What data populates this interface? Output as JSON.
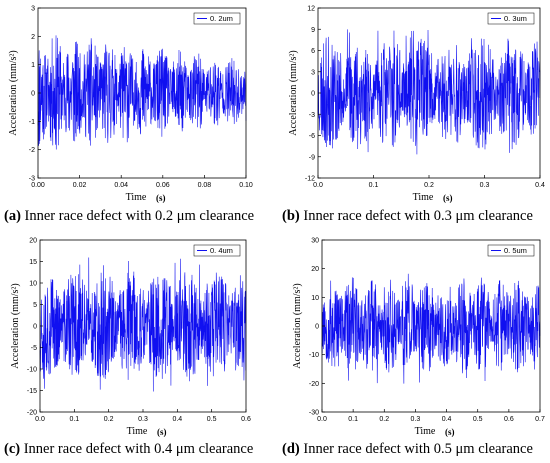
{
  "colors": {
    "signal": "#1010f0",
    "axis": "#000000"
  },
  "chart_data": [
    {
      "id": "a",
      "type": "line",
      "caption_tag": "(a)",
      "caption_text": " Inner race defect with 0.2 μm clearance",
      "xlabel": "Time",
      "xlabel_unit": "(s)",
      "ylabel": "Acceleration  (mm/s²)",
      "xlim": [
        0,
        0.1
      ],
      "ylim": [
        -3,
        3
      ],
      "xticks": [
        "0.00",
        "0.02",
        "0.04",
        "0.06",
        "0.08",
        "0.10"
      ],
      "yticks": [
        "-3",
        "-2",
        "-1",
        "0",
        "1",
        "2",
        "3"
      ],
      "series": [
        {
          "name": "0. 2um",
          "envelope": {
            "amplitude_start": 2.2,
            "amplitude_end": 1.2,
            "x_range": [
              0,
              0.1
            ]
          }
        }
      ],
      "legend_position": "top-right"
    },
    {
      "id": "b",
      "type": "line",
      "caption_tag": "(b)",
      "caption_text": " Inner race defect with 0.3 μm clearance",
      "xlabel": "Time",
      "xlabel_unit": "(s)",
      "ylabel": "Acceleration  (mm/s²)",
      "xlim": [
        0,
        0.4
      ],
      "ylim": [
        -12,
        12
      ],
      "xticks": [
        "0.0",
        "0.1",
        "0.2",
        "0.3",
        "0.4"
      ],
      "yticks": [
        "-12",
        "-9",
        "-6",
        "-3",
        "0",
        "3",
        "6",
        "9",
        "12"
      ],
      "series": [
        {
          "name": "0. 3um",
          "envelope": {
            "amplitude_start": 8,
            "amplitude_end": 8,
            "peak": 9,
            "x_range": [
              0,
              0.4
            ]
          }
        }
      ],
      "legend_position": "top-right"
    },
    {
      "id": "c",
      "type": "line",
      "caption_tag": "(c)",
      "caption_text": " Inner race defect with 0.4 μm clearance",
      "xlabel": "Time",
      "xlabel_unit": "(s)",
      "ylabel": "Acceleration  (mm/s²)",
      "xlim": [
        0,
        0.6
      ],
      "ylim": [
        -20,
        20
      ],
      "xticks": [
        "0.0",
        "0.1",
        "0.2",
        "0.3",
        "0.4",
        "0.5",
        "0.6"
      ],
      "yticks": [
        "-20",
        "-15",
        "-10",
        "-5",
        "0",
        "5",
        "10",
        "15",
        "20"
      ],
      "series": [
        {
          "name": "0. 4um",
          "envelope": {
            "amplitude_start": 13,
            "amplitude_end": 13,
            "peak": 16,
            "x_range": [
              0,
              0.6
            ]
          }
        }
      ],
      "legend_position": "top-right"
    },
    {
      "id": "d",
      "type": "line",
      "caption_tag": "(d)",
      "caption_text": " Inner race defect with 0.5 μm clearance",
      "xlabel": "Time",
      "xlabel_unit": "(s)",
      "ylabel": "Acceleration  (mm/s²)",
      "xlim": [
        0,
        0.7
      ],
      "ylim": [
        -30,
        30
      ],
      "xticks": [
        "0.0",
        "0.1",
        "0.2",
        "0.3",
        "0.4",
        "0.5",
        "0.6",
        "0.7"
      ],
      "yticks": [
        "-30",
        "-20",
        "-10",
        "0",
        "10",
        "20",
        "30"
      ],
      "series": [
        {
          "name": "0. 5um",
          "envelope": {
            "amplitude_start": 17,
            "amplitude_end": 17,
            "peak": 21,
            "x_range": [
              0,
              0.7
            ]
          }
        }
      ],
      "legend_position": "top-right"
    }
  ]
}
